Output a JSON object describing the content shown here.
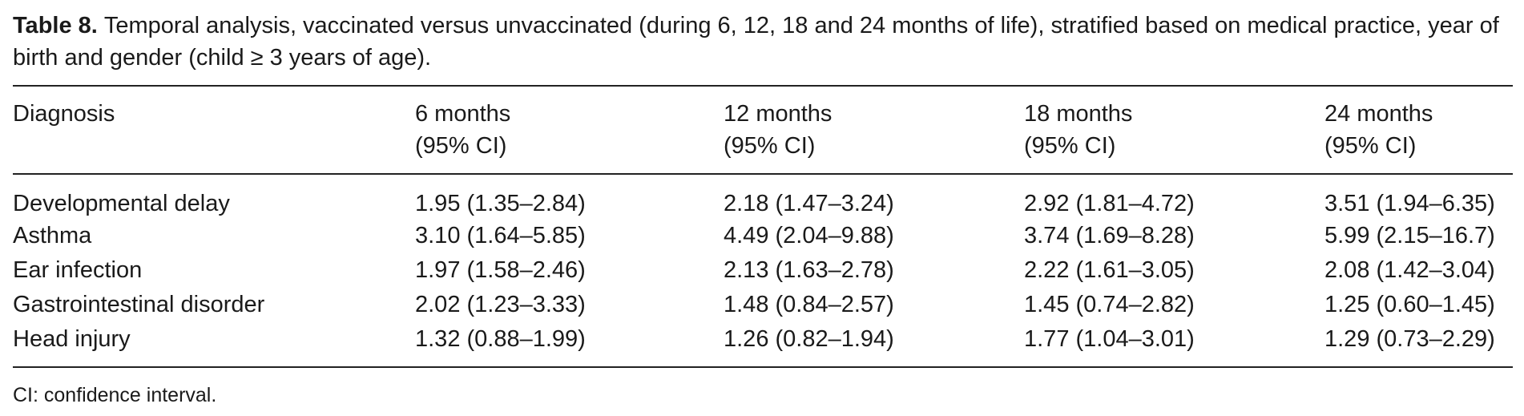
{
  "caption": {
    "label": "Table 8.",
    "text": "Temporal analysis, vaccinated versus unvaccinated (during 6, 12, 18 and 24 months of life), stratified based on medical practice, year of birth and gender (child ≥ 3 years of age)."
  },
  "table": {
    "headers": [
      {
        "line1": "Diagnosis",
        "line2": ""
      },
      {
        "line1": "6 months",
        "line2": "(95% CI)"
      },
      {
        "line1": "12 months",
        "line2": "(95% CI)"
      },
      {
        "line1": "18 months",
        "line2": "(95% CI)"
      },
      {
        "line1": "24 months",
        "line2": "(95% CI)"
      }
    ],
    "rows": [
      [
        "Developmental delay",
        "1.95 (1.35–2.84)",
        "2.18 (1.47–3.24)",
        "2.92 (1.81–4.72)",
        "3.51 (1.94–6.35)"
      ],
      [
        "Asthma",
        "3.10 (1.64–5.85)",
        "4.49 (2.04–9.88)",
        "3.74 (1.69–8.28)",
        "5.99 (2.15–16.7)"
      ],
      [
        "Ear infection",
        "1.97 (1.58–2.46)",
        "2.13 (1.63–2.78)",
        "2.22 (1.61–3.05)",
        "2.08 (1.42–3.04)"
      ],
      [
        "Gastrointestinal disorder",
        "2.02 (1.23–3.33)",
        "1.48 (0.84–2.57)",
        "1.45 (0.74–2.82)",
        "1.25 (0.60–1.45)"
      ],
      [
        "Head injury",
        "1.32 (0.88–1.99)",
        "1.26 (0.82–1.94)",
        "1.77 (1.04–3.01)",
        "1.29 (0.73–2.29)"
      ]
    ]
  },
  "footnote": "CI: confidence interval."
}
